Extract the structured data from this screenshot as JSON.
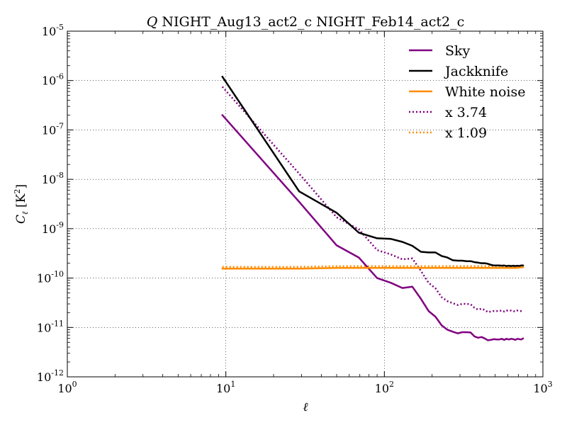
{
  "chart_data": {
    "type": "line",
    "title_symbol": "Q",
    "title_rest": " NIGHT_Aug13_act2_c NIGHT_Feb14_act2_c",
    "xlabel": "ℓ",
    "ylabel_sym": "C",
    "ylabel_sub": "ℓ",
    "ylabel_unit_open": " [K",
    "ylabel_unit_exp": "2",
    "ylabel_unit_close": "]",
    "x_scale": "log",
    "y_scale": "log",
    "xlim": [
      1,
      1000
    ],
    "ylim": [
      1e-12,
      1e-05
    ],
    "grid": true,
    "legend_position": "top-right",
    "x_ticks": [
      {
        "value": 1,
        "base": "10",
        "exp": "0"
      },
      {
        "value": 10,
        "base": "10",
        "exp": "1"
      },
      {
        "value": 100,
        "base": "10",
        "exp": "2"
      },
      {
        "value": 1000,
        "base": "10",
        "exp": "3"
      }
    ],
    "y_ticks": [
      {
        "value": 1e-12,
        "base": "10",
        "exp": "-12"
      },
      {
        "value": 1e-11,
        "base": "10",
        "exp": "-11"
      },
      {
        "value": 1e-10,
        "base": "10",
        "exp": "-10"
      },
      {
        "value": 1e-09,
        "base": "10",
        "exp": "-9"
      },
      {
        "value": 1e-08,
        "base": "10",
        "exp": "-8"
      },
      {
        "value": 1e-07,
        "base": "10",
        "exp": "-7"
      },
      {
        "value": 1e-06,
        "base": "10",
        "exp": "-6"
      },
      {
        "value": 1e-05,
        "base": "10",
        "exp": "-5"
      }
    ],
    "series": [
      {
        "name": "Sky",
        "color": "#800080",
        "style": "solid",
        "x": [
          9.5,
          29,
          50,
          69,
          90,
          110,
          130,
          150,
          170,
          190,
          210,
          230,
          250,
          270,
          290,
          310,
          330,
          350,
          370,
          390,
          410,
          430,
          450,
          470,
          490,
          510,
          530,
          550,
          570,
          590,
          610,
          630,
          650,
          670,
          690,
          710,
          730,
          750
        ],
        "y": [
          2e-07,
          3.5e-09,
          4.6e-10,
          2.6e-10,
          1e-10,
          8e-11,
          6.3e-11,
          6.7e-11,
          3.8e-11,
          2.15e-11,
          1.65e-11,
          1.1e-11,
          9e-12,
          8.2e-12,
          7.6e-12,
          8e-12,
          8e-12,
          7.9e-12,
          6.6e-12,
          6.2e-12,
          6.4e-12,
          6e-12,
          5.5e-12,
          5.6e-12,
          5.8e-12,
          5.7e-12,
          5.7e-12,
          5.9e-12,
          5.6e-12,
          5.9e-12,
          5.7e-12,
          5.9e-12,
          5.8e-12,
          5.6e-12,
          5.9e-12,
          5.8e-12,
          5.7e-12,
          6e-12
        ]
      },
      {
        "name": "Jackknife",
        "color": "#000000",
        "style": "solid",
        "x": [
          9.5,
          29,
          50,
          69,
          90,
          110,
          130,
          150,
          170,
          190,
          210,
          230,
          250,
          270,
          290,
          310,
          330,
          350,
          370,
          390,
          410,
          430,
          450,
          470,
          490,
          510,
          530,
          550,
          570,
          590,
          610,
          630,
          650,
          670,
          690,
          710,
          730,
          750
        ],
        "y": [
          1.2e-06,
          5.7e-09,
          2.1e-09,
          8.3e-10,
          6.4e-10,
          6.2e-10,
          5.4e-10,
          4.5e-10,
          3.4e-10,
          3.3e-10,
          3.3e-10,
          2.8e-10,
          2.6e-10,
          2.3e-10,
          2.25e-10,
          2.25e-10,
          2.2e-10,
          2.2e-10,
          2.1e-10,
          2.05e-10,
          2e-10,
          2e-10,
          1.95e-10,
          1.85e-10,
          1.8e-10,
          1.8e-10,
          1.8e-10,
          1.78e-10,
          1.8e-10,
          1.75e-10,
          1.78e-10,
          1.75e-10,
          1.78e-10,
          1.75e-10,
          1.78e-10,
          1.75e-10,
          1.8e-10,
          1.8e-10
        ]
      },
      {
        "name": "White noise",
        "color": "#ff8c00",
        "style": "solid",
        "x": [
          9.5,
          29,
          50,
          69,
          90,
          110,
          130,
          150,
          170,
          190,
          210,
          230,
          250,
          270,
          290,
          310,
          330,
          350,
          370,
          390,
          410,
          430,
          450,
          470,
          490,
          510,
          530,
          550,
          570,
          590,
          610,
          630,
          650,
          670,
          690,
          710,
          730,
          750
        ],
        "y": [
          1.55e-10,
          1.55e-10,
          1.6e-10,
          1.6e-10,
          1.6e-10,
          1.6e-10,
          1.6e-10,
          1.6e-10,
          1.6e-10,
          1.6e-10,
          1.6e-10,
          1.6e-10,
          1.6e-10,
          1.6e-10,
          1.6e-10,
          1.6e-10,
          1.6e-10,
          1.6e-10,
          1.6e-10,
          1.6e-10,
          1.6e-10,
          1.6e-10,
          1.6e-10,
          1.6e-10,
          1.6e-10,
          1.6e-10,
          1.6e-10,
          1.6e-10,
          1.6e-10,
          1.6e-10,
          1.6e-10,
          1.6e-10,
          1.6e-10,
          1.6e-10,
          1.62e-10,
          1.63e-10,
          1.65e-10,
          1.65e-10
        ]
      },
      {
        "name": "x 3.74",
        "color": "#800080",
        "style": "dotted",
        "x": [
          9.5,
          29,
          50,
          69,
          90,
          110,
          130,
          150,
          170,
          190,
          210,
          230,
          250,
          270,
          290,
          310,
          330,
          350,
          370,
          390,
          410,
          430,
          450,
          470,
          490,
          510,
          530,
          550,
          570,
          590,
          610,
          630,
          650,
          670,
          690,
          710,
          730,
          750
        ],
        "y": [
          7.5e-07,
          1.3e-08,
          1.7e-09,
          9.7e-10,
          3.7e-10,
          3e-10,
          2.4e-10,
          2.5e-10,
          1.4e-10,
          8e-11,
          6.2e-11,
          4.1e-11,
          3.4e-11,
          3.1e-11,
          2.85e-11,
          3e-11,
          3e-11,
          2.95e-11,
          2.5e-11,
          2.3e-11,
          2.4e-11,
          2.25e-11,
          2.05e-11,
          2.1e-11,
          2.15e-11,
          2.15e-11,
          2.15e-11,
          2.2e-11,
          2.1e-11,
          2.2e-11,
          2.15e-11,
          2.2e-11,
          2.15e-11,
          2.1e-11,
          2.2e-11,
          2.15e-11,
          2.15e-11,
          2.2e-11
        ]
      },
      {
        "name": "x 1.09",
        "color": "#ff8c00",
        "style": "dotted",
        "x": [
          9.5,
          29,
          50,
          69,
          90,
          110,
          130,
          150,
          170,
          190,
          210,
          230,
          250,
          270,
          290,
          310,
          330,
          350,
          370,
          390,
          410,
          430,
          450,
          470,
          490,
          510,
          530,
          550,
          570,
          590,
          610,
          630,
          650,
          670,
          690,
          710,
          730,
          750
        ],
        "y": [
          1.69e-10,
          1.69e-10,
          1.74e-10,
          1.74e-10,
          1.74e-10,
          1.74e-10,
          1.74e-10,
          1.74e-10,
          1.74e-10,
          1.74e-10,
          1.74e-10,
          1.74e-10,
          1.74e-10,
          1.74e-10,
          1.74e-10,
          1.74e-10,
          1.74e-10,
          1.74e-10,
          1.74e-10,
          1.74e-10,
          1.74e-10,
          1.74e-10,
          1.74e-10,
          1.74e-10,
          1.74e-10,
          1.74e-10,
          1.74e-10,
          1.74e-10,
          1.74e-10,
          1.74e-10,
          1.74e-10,
          1.74e-10,
          1.74e-10,
          1.74e-10,
          1.77e-10,
          1.78e-10,
          1.8e-10,
          1.8e-10
        ]
      }
    ]
  }
}
